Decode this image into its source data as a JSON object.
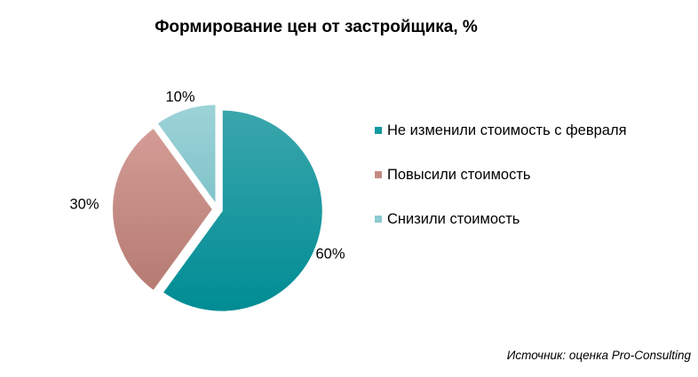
{
  "chart_data": {
    "type": "pie",
    "title": "Формирование цен от застройщика, %",
    "categories": [
      "Не изменили стоимость с февраля",
      "Повысили стоимость",
      "Снизили стоимость"
    ],
    "values": [
      60,
      30,
      10
    ],
    "value_labels": [
      "60%",
      "30%",
      "10%"
    ],
    "colors": [
      "#13999f",
      "#c58a83",
      "#8ccbd1"
    ],
    "legend_position": "right",
    "exploded": true
  },
  "source": "Источник:  оценка Pro-Consulting"
}
